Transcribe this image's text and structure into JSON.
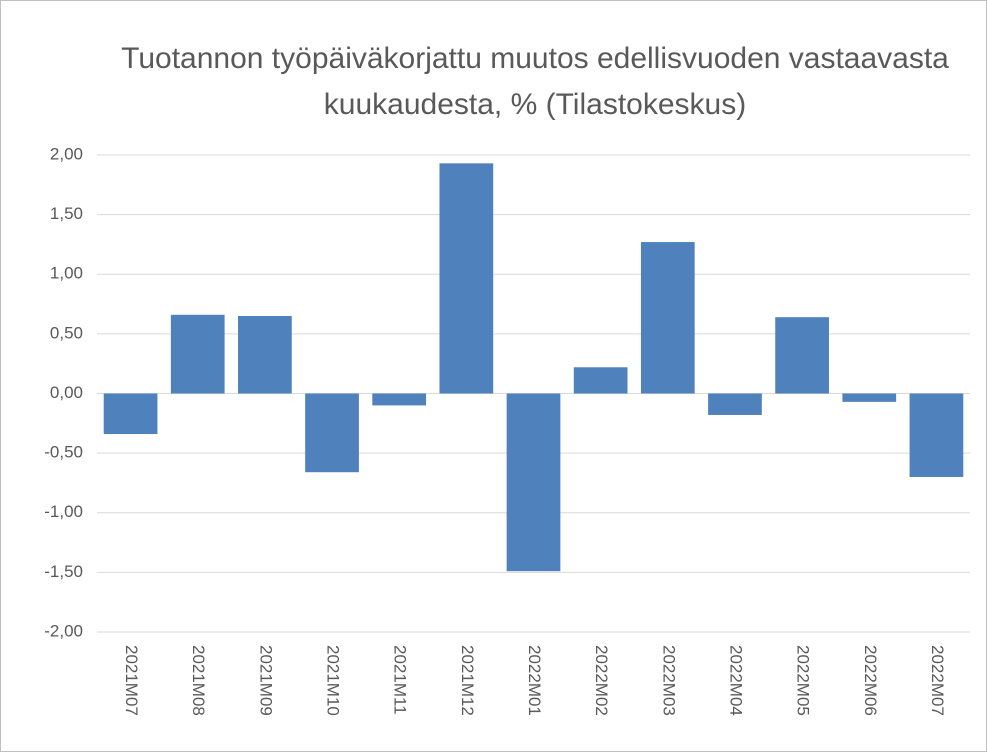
{
  "chart_data": {
    "type": "bar",
    "title": "Tuotannon työpäiväkorjattu muutos edellisvuoden vastaavasta kuukaudesta, % (Tilastokeskus)",
    "categories": [
      "2021M07",
      "2021M08",
      "2021M09",
      "2021M10",
      "2021M11",
      "2021M12",
      "2022M01",
      "2022M02",
      "2022M03",
      "2022M04",
      "2022M05",
      "2022M06",
      "2022M07"
    ],
    "values": [
      -0.34,
      0.66,
      0.65,
      -0.66,
      -0.1,
      1.93,
      -1.49,
      0.22,
      1.27,
      -0.18,
      0.64,
      -0.07,
      -0.7
    ],
    "color": "#4f81bd",
    "ylim": [
      -2,
      2
    ],
    "yticks": [
      {
        "value": -2,
        "label": "-2,00"
      },
      {
        "value": -1.5,
        "label": "-1,50"
      },
      {
        "value": -1,
        "label": "-1,00"
      },
      {
        "value": -0.5,
        "label": "-0,50"
      },
      {
        "value": 0,
        "label": "0,00"
      },
      {
        "value": 0.5,
        "label": "0,50"
      },
      {
        "value": 1,
        "label": "1,00"
      },
      {
        "value": 1.5,
        "label": "1,50"
      },
      {
        "value": 2,
        "label": "2,00"
      }
    ],
    "grid": true
  }
}
